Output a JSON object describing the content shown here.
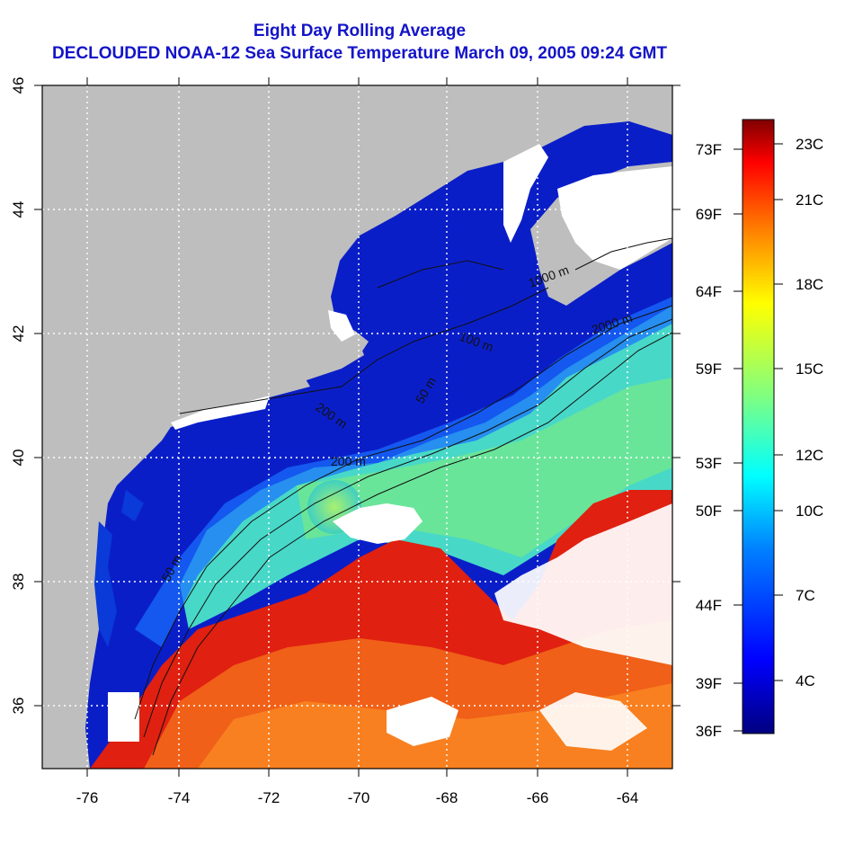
{
  "title": {
    "line1": "Eight Day Rolling Average",
    "line2": "DECLOUDED NOAA-12 Sea Surface Temperature March 09, 2005 09:24 GMT"
  },
  "axes": {
    "lon_ticks": [
      "-76",
      "-74",
      "-72",
      "-70",
      "-68",
      "-66",
      "-64"
    ],
    "lat_ticks": [
      "36",
      "38",
      "40",
      "42",
      "44",
      "46"
    ],
    "lon_range": [
      -77,
      -63
    ],
    "lat_range": [
      35,
      46
    ],
    "grid": "dotted white"
  },
  "colorbar": {
    "celsius_labels": [
      "23C",
      "21C",
      "18C",
      "15C",
      "12C",
      "10C",
      "7C",
      "4C"
    ],
    "fahrenheit_labels": [
      "73F",
      "69F",
      "64F",
      "59F",
      "53F",
      "50F",
      "44F",
      "39F",
      "36F"
    ],
    "colors": [
      "#000080",
      "#0000ff",
      "#0080ff",
      "#00ffff",
      "#80ff80",
      "#ffff00",
      "#ff8000",
      "#ff0000",
      "#800000"
    ]
  },
  "contours": {
    "labels": [
      "50 m",
      "200 m",
      "1000 m",
      "2000 m",
      "50 m",
      "200 m",
      "100 m"
    ]
  },
  "map_colors": {
    "land": "#bebebe",
    "cloud": "#ffffff",
    "cold_water": "#0a1ec8",
    "gulf_stream": "#e02010"
  }
}
